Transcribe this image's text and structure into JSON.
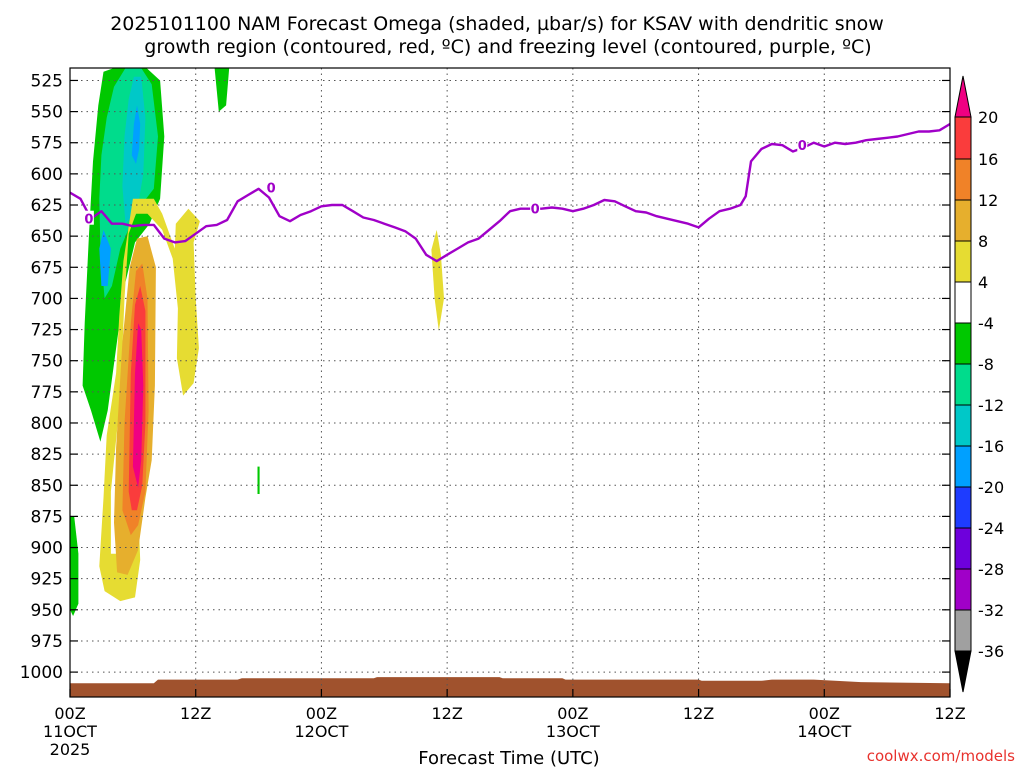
{
  "chart_data": {
    "type": "heatmap",
    "title_line1": "2025101100 NAM Forecast Omega (shaded, µbar/s) for KSAV with dendritic snow",
    "title_line2": "growth region (contoured, red, ºC) and freezing level (contoured, purple, ºC)",
    "xlabel": "Forecast Time (UTC)",
    "ylabel": "",
    "credit": "coolwx.com/models",
    "x_unit": "forecast hour",
    "xlim": [
      0,
      84
    ],
    "ylim": [
      1020,
      515
    ],
    "y_ticks": [
      525,
      550,
      575,
      600,
      625,
      650,
      675,
      700,
      725,
      750,
      775,
      800,
      825,
      850,
      875,
      900,
      925,
      950,
      975,
      1000
    ],
    "x_ticks": [
      {
        "hour": 0,
        "lines": [
          "00Z",
          "11OCT",
          "2025"
        ]
      },
      {
        "hour": 12,
        "lines": [
          "12Z"
        ]
      },
      {
        "hour": 24,
        "lines": [
          "00Z",
          "12OCT"
        ]
      },
      {
        "hour": 36,
        "lines": [
          "12Z"
        ]
      },
      {
        "hour": 48,
        "lines": [
          "00Z",
          "13OCT"
        ]
      },
      {
        "hour": 60,
        "lines": [
          "12Z"
        ]
      },
      {
        "hour": 72,
        "lines": [
          "00Z",
          "14OCT"
        ]
      },
      {
        "hour": 84,
        "lines": [
          "12Z"
        ]
      }
    ],
    "grid": true,
    "colorbar": {
      "location": "right",
      "levels": [
        -36,
        -32,
        -28,
        -24,
        -20,
        -16,
        -12,
        -8,
        -4,
        4,
        8,
        12,
        16,
        20
      ],
      "colors": [
        "#000000",
        "#a0a0a0",
        "#a000c8",
        "#6e00dc",
        "#1e3cff",
        "#00a0ff",
        "#00c8c8",
        "#00dc8c",
        "#00c800",
        "#ffffff",
        "#e6dc32",
        "#e6af2d",
        "#f08228",
        "#fa3c3c",
        "#f00082"
      ],
      "labels": [
        "20",
        "16",
        "12",
        "8",
        "4",
        "-4",
        "-8",
        "-12",
        "-16",
        "-20",
        "-24",
        "-28",
        "-32",
        "-36"
      ]
    },
    "omega_regions": [
      {
        "name": "green",
        "color": "#00c800",
        "points": [
          [
            1.2,
            770
          ],
          [
            1.4,
            720
          ],
          [
            1.8,
            650
          ],
          [
            2.2,
            590
          ],
          [
            2.7,
            545
          ],
          [
            3.2,
            518
          ],
          [
            4.2,
            515
          ],
          [
            5.8,
            515
          ],
          [
            7.3,
            515
          ],
          [
            8.6,
            525
          ],
          [
            9.0,
            570
          ],
          [
            8.6,
            620
          ],
          [
            7.6,
            640
          ],
          [
            6.2,
            655
          ],
          [
            5.2,
            690
          ],
          [
            4.4,
            740
          ],
          [
            3.6,
            790
          ],
          [
            2.9,
            815
          ],
          [
            2.0,
            790
          ]
        ]
      },
      {
        "name": "medium-green",
        "color": "#00dc8c",
        "points": [
          [
            2.8,
            620
          ],
          [
            3.0,
            585
          ],
          [
            3.5,
            555
          ],
          [
            4.2,
            530
          ],
          [
            5.3,
            515
          ],
          [
            6.8,
            515
          ],
          [
            7.8,
            528
          ],
          [
            8.4,
            570
          ],
          [
            8.0,
            612
          ],
          [
            6.8,
            625
          ],
          [
            5.8,
            640
          ],
          [
            4.8,
            660
          ],
          [
            4.0,
            690
          ],
          [
            3.3,
            700
          ],
          [
            2.9,
            660
          ]
        ]
      },
      {
        "name": "teal",
        "color": "#00c8c8",
        "points": [
          [
            5.0,
            610
          ],
          [
            5.2,
            570
          ],
          [
            5.6,
            540
          ],
          [
            6.1,
            522
          ],
          [
            6.8,
            522
          ],
          [
            7.2,
            555
          ],
          [
            7.0,
            600
          ],
          [
            6.5,
            625
          ],
          [
            5.8,
            635
          ],
          [
            5.3,
            640
          ]
        ]
      },
      {
        "name": "blue",
        "color": "#00a0ff",
        "points": [
          [
            5.9,
            585
          ],
          [
            6.1,
            560
          ],
          [
            6.4,
            545
          ],
          [
            6.7,
            560
          ],
          [
            6.6,
            580
          ],
          [
            6.3,
            592
          ]
        ]
      },
      {
        "name": "blue-low",
        "color": "#00a0ff",
        "points": [
          [
            2.8,
            660
          ],
          [
            3.2,
            645
          ],
          [
            3.9,
            660
          ],
          [
            3.6,
            690
          ],
          [
            3.0,
            690
          ]
        ]
      },
      {
        "name": "green-small",
        "color": "#00c800",
        "points": [
          [
            13.8,
            515
          ],
          [
            15.2,
            515
          ],
          [
            14.9,
            545
          ],
          [
            14.2,
            550
          ]
        ]
      },
      {
        "name": "green-dot",
        "color": "#00c800",
        "points": [
          [
            17.9,
            835
          ],
          [
            18.1,
            835
          ],
          [
            18.1,
            857
          ],
          [
            17.9,
            857
          ]
        ]
      },
      {
        "name": "green-low",
        "color": "#00c800",
        "points": [
          [
            0,
            875
          ],
          [
            0.4,
            875
          ],
          [
            0.8,
            905
          ],
          [
            0.8,
            945
          ],
          [
            0.3,
            955
          ],
          [
            0,
            950
          ]
        ]
      },
      {
        "name": "yellow",
        "color": "#e6dc32",
        "points": [
          [
            3.9,
            905
          ],
          [
            3.9,
            855
          ],
          [
            4.8,
            780
          ],
          [
            5.2,
            700
          ],
          [
            5.6,
            648
          ],
          [
            6.3,
            632
          ],
          [
            7.4,
            632
          ],
          [
            8.8,
            645
          ],
          [
            9.8,
            668
          ],
          [
            10.3,
            708
          ],
          [
            10.2,
            748
          ],
          [
            10.8,
            778
          ],
          [
            11.8,
            768
          ],
          [
            12.3,
            740
          ],
          [
            12.0,
            700
          ],
          [
            11.8,
            655
          ],
          [
            12.4,
            638
          ],
          [
            11.3,
            628
          ],
          [
            10.1,
            640
          ],
          [
            10.0,
            660
          ],
          [
            8.8,
            632
          ],
          [
            8.0,
            620
          ],
          [
            6.0,
            620
          ],
          [
            5.1,
            670
          ],
          [
            4.7,
            715
          ],
          [
            4.4,
            760
          ],
          [
            3.5,
            810
          ],
          [
            3.2,
            860
          ],
          [
            2.8,
            915
          ],
          [
            3.3,
            935
          ],
          [
            4.8,
            943
          ],
          [
            6.2,
            940
          ],
          [
            6.7,
            910
          ],
          [
            6.4,
            845
          ],
          [
            6.2,
            790
          ],
          [
            4.5,
            905
          ]
        ]
      },
      {
        "name": "yellow-mid",
        "color": "#e6dc32",
        "points": [
          [
            34.5,
            661
          ],
          [
            35.0,
            645
          ],
          [
            35.4,
            665
          ],
          [
            35.7,
            700
          ],
          [
            35.2,
            726
          ],
          [
            34.8,
            700
          ]
        ]
      },
      {
        "name": "orange-light",
        "color": "#e6af2d",
        "points": [
          [
            4.2,
            880
          ],
          [
            4.4,
            820
          ],
          [
            5.0,
            735
          ],
          [
            5.7,
            675
          ],
          [
            6.4,
            652
          ],
          [
            7.4,
            650
          ],
          [
            8.2,
            675
          ],
          [
            8.1,
            770
          ],
          [
            7.8,
            830
          ],
          [
            7.2,
            860
          ],
          [
            6.5,
            902
          ],
          [
            5.5,
            922
          ],
          [
            4.5,
            920
          ]
        ]
      },
      {
        "name": "orange",
        "color": "#f08228",
        "points": [
          [
            5.0,
            870
          ],
          [
            5.2,
            800
          ],
          [
            5.8,
            720
          ],
          [
            6.3,
            678
          ],
          [
            6.9,
            672
          ],
          [
            7.4,
            700
          ],
          [
            7.5,
            790
          ],
          [
            7.2,
            855
          ],
          [
            6.5,
            882
          ],
          [
            5.8,
            890
          ]
        ]
      },
      {
        "name": "red",
        "color": "#fa3c3c",
        "points": [
          [
            5.6,
            855
          ],
          [
            5.8,
            760
          ],
          [
            6.2,
            705
          ],
          [
            6.7,
            690
          ],
          [
            7.2,
            710
          ],
          [
            7.2,
            800
          ],
          [
            6.9,
            850
          ],
          [
            6.4,
            870
          ],
          [
            5.9,
            870
          ]
        ]
      },
      {
        "name": "magenta",
        "color": "#f00082",
        "points": [
          [
            6.0,
            835
          ],
          [
            6.2,
            760
          ],
          [
            6.5,
            720
          ],
          [
            6.8,
            725
          ],
          [
            7.0,
            770
          ],
          [
            6.8,
            830
          ],
          [
            6.5,
            852
          ]
        ]
      }
    ],
    "freezing_level": {
      "color": "#a000c8",
      "contour_label": "0",
      "points": [
        [
          0,
          615
        ],
        [
          1.0,
          620
        ],
        [
          2.0,
          636
        ],
        [
          3.0,
          630
        ],
        [
          4.0,
          640
        ],
        [
          5.0,
          640
        ],
        [
          6.0,
          642
        ],
        [
          7.0,
          641
        ],
        [
          8.0,
          641
        ],
        [
          9.0,
          652
        ],
        [
          10.0,
          655
        ],
        [
          11.0,
          654
        ],
        [
          12.0,
          648
        ],
        [
          13.0,
          642
        ],
        [
          14.0,
          641
        ],
        [
          15.0,
          637
        ],
        [
          16.0,
          622
        ],
        [
          17.0,
          617
        ],
        [
          18.0,
          612
        ],
        [
          19.0,
          619
        ],
        [
          20.0,
          634
        ],
        [
          21.0,
          638
        ],
        [
          22.0,
          633
        ],
        [
          23.0,
          630
        ],
        [
          24.0,
          626
        ],
        [
          25.0,
          625
        ],
        [
          26.0,
          625
        ],
        [
          27.0,
          630
        ],
        [
          28.0,
          635
        ],
        [
          29.0,
          637
        ],
        [
          30.0,
          640
        ],
        [
          31.0,
          643
        ],
        [
          32.0,
          646
        ],
        [
          33.0,
          652
        ],
        [
          34.0,
          665
        ],
        [
          35.0,
          670
        ],
        [
          36.0,
          665
        ],
        [
          37.0,
          660
        ],
        [
          38.0,
          655
        ],
        [
          39.0,
          652
        ],
        [
          40.0,
          645
        ],
        [
          41.0,
          638
        ],
        [
          42.0,
          630
        ],
        [
          43.0,
          628
        ],
        [
          44.0,
          628
        ],
        [
          45.0,
          628
        ],
        [
          46.0,
          627
        ],
        [
          47.0,
          628
        ],
        [
          48.0,
          630
        ],
        [
          49.0,
          628
        ],
        [
          50.0,
          625
        ],
        [
          51.0,
          621
        ],
        [
          52.0,
          622
        ],
        [
          53.0,
          626
        ],
        [
          54.0,
          630
        ],
        [
          55.0,
          631
        ],
        [
          56.0,
          634
        ],
        [
          57.0,
          636
        ],
        [
          58.0,
          638
        ],
        [
          59.0,
          640
        ],
        [
          60.0,
          643
        ],
        [
          61.0,
          636
        ],
        [
          62.0,
          630
        ],
        [
          63.0,
          628
        ],
        [
          64.0,
          625
        ],
        [
          64.5,
          618
        ],
        [
          65.0,
          590
        ],
        [
          66.0,
          580
        ],
        [
          67.0,
          576
        ],
        [
          68.0,
          577
        ],
        [
          69.0,
          582
        ],
        [
          70.0,
          579
        ],
        [
          71.0,
          575
        ],
        [
          72.0,
          578
        ],
        [
          73.0,
          575
        ],
        [
          74.0,
          576
        ],
        [
          75.0,
          575
        ],
        [
          76.0,
          573
        ],
        [
          77.0,
          572
        ],
        [
          78.0,
          571
        ],
        [
          79.0,
          570
        ],
        [
          80.0,
          568
        ],
        [
          81.0,
          566
        ],
        [
          82.0,
          566
        ],
        [
          83.0,
          565
        ],
        [
          84.0,
          560
        ]
      ],
      "label_positions": [
        [
          1.8,
          636
        ],
        [
          19.2,
          611
        ],
        [
          44.4,
          628
        ],
        [
          69.9,
          577
        ]
      ]
    },
    "terrain": {
      "color": "#a0522d",
      "points": [
        [
          0,
          1009
        ],
        [
          8,
          1009
        ],
        [
          8.4,
          1006
        ],
        [
          16,
          1006
        ],
        [
          16.4,
          1005
        ],
        [
          29,
          1005
        ],
        [
          29.3,
          1004
        ],
        [
          41,
          1004
        ],
        [
          41.3,
          1005
        ],
        [
          47,
          1005
        ],
        [
          47.3,
          1006
        ],
        [
          60,
          1006
        ],
        [
          60.3,
          1007
        ],
        [
          66,
          1007
        ],
        [
          67,
          1006
        ],
        [
          71,
          1006
        ],
        [
          75.5,
          1008
        ],
        [
          84,
          1009
        ]
      ]
    }
  }
}
